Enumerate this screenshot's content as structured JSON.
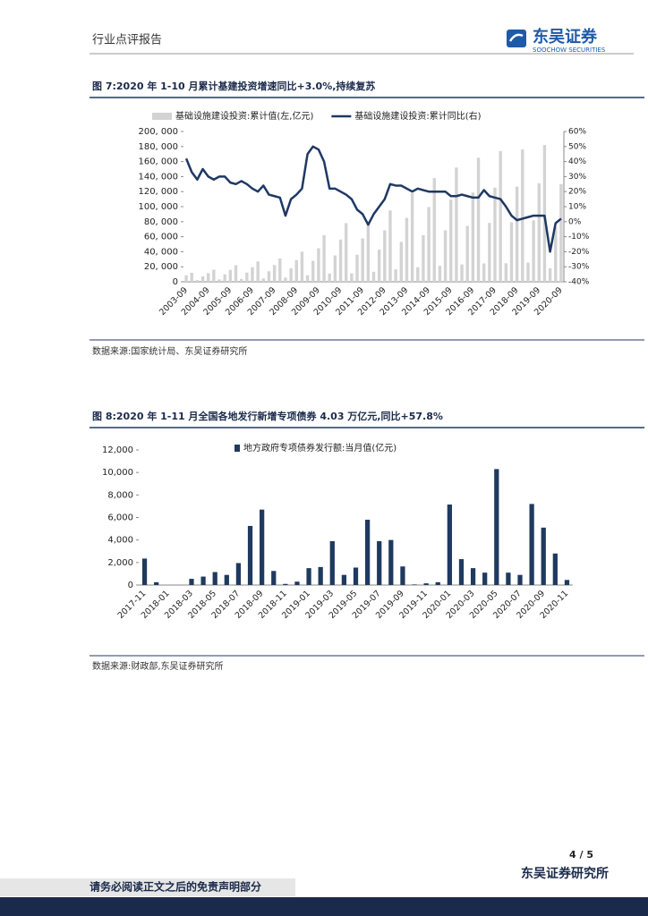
{
  "header": {
    "report_type": "行业点评报告",
    "logo_cn": "东吴证券",
    "logo_en": "SOOCHOW SECURITIES"
  },
  "chart_data": [
    {
      "type": "combo",
      "title": "图 7:2020 年 1-10 月累计基建投资增速同比+3.0%,持续复苏",
      "source": "数据来源:国家统计局、东吴证券研究所",
      "categories": [
        "2003-09",
        null,
        null,
        null,
        "2004-09",
        null,
        null,
        null,
        "2005-09",
        null,
        null,
        null,
        "2006-09",
        null,
        null,
        null,
        "2007-09",
        null,
        null,
        null,
        "2008-09",
        null,
        null,
        null,
        "2009-09",
        null,
        null,
        null,
        "2010-09",
        null,
        null,
        null,
        "2011-09",
        null,
        null,
        null,
        "2012-09",
        null,
        null,
        null,
        "2013-09",
        null,
        null,
        null,
        "2014-09",
        null,
        null,
        null,
        "2015-09",
        null,
        null,
        null,
        "2016-09",
        null,
        null,
        null,
        "2017-09",
        null,
        null,
        null,
        "2018-09",
        null,
        null,
        null,
        "2019-09",
        null,
        null,
        null,
        "2020-09"
      ],
      "series": [
        {
          "name": "基础设施建设投资:累计值(左,亿元)",
          "type": "bar",
          "color": "#d3d3d3",
          "values": [
            8600,
            12000,
            2200,
            7200,
            11500,
            16000,
            3100,
            9900,
            15800,
            22000,
            3800,
            12200,
            19400,
            27000,
            4300,
            14000,
            22300,
            31000,
            5600,
            18000,
            28800,
            40000,
            8700,
            27900,
            44600,
            62000,
            10900,
            35100,
            56200,
            78000,
            11200,
            36000,
            57600,
            80000,
            13300,
            42800,
            68400,
            95000,
            16500,
            53100,
            85000,
            118000,
            19300,
            62100,
            99400,
            138000,
            21300,
            68400,
            109400,
            152000,
            23100,
            74300,
            118800,
            165000,
            24400,
            78300,
            125300,
            174000,
            24600,
            79200,
            126700,
            176000,
            25500,
            81900,
            131000,
            182000,
            18000,
            73000,
            130000
          ]
        },
        {
          "name": "基础设施建设投资:累计同比(右)",
          "type": "line",
          "axis": "y2",
          "color": "#1f3864",
          "values": [
            42,
            33,
            28,
            35,
            30,
            28,
            30,
            30,
            26,
            25,
            27,
            25,
            22,
            20,
            24,
            18,
            17,
            16,
            4,
            15,
            18,
            22,
            45,
            50,
            48,
            40,
            22,
            22,
            20,
            18,
            15,
            8,
            5,
            -2,
            5,
            10,
            15,
            25,
            24,
            24,
            22,
            20,
            22,
            21,
            20,
            20,
            20,
            20,
            17,
            17,
            18,
            17,
            16,
            16,
            21,
            17,
            16,
            15,
            10,
            4,
            1,
            2,
            3,
            4,
            4,
            4,
            -20,
            -1,
            2
          ]
        }
      ],
      "ylim": [
        0,
        200000
      ],
      "yticks": [
        0,
        {
          "value": 20000,
          "label": "20, 000"
        },
        {
          "value": 40000,
          "label": "40, 000"
        },
        {
          "value": 60000,
          "label": "60, 000"
        },
        {
          "value": 80000,
          "label": "80, 000"
        },
        {
          "value": 100000,
          "label": "100, 000"
        },
        {
          "value": 120000,
          "label": "120, 000"
        },
        {
          "value": 140000,
          "label": "140, 000"
        },
        {
          "value": 160000,
          "label": "160, 000"
        },
        {
          "value": 180000,
          "label": "180, 000"
        },
        {
          "value": 200000,
          "label": "200, 000"
        }
      ],
      "y2lim": [
        -40,
        60
      ],
      "y2ticks": [
        {
          "value": -40,
          "label": "-40%"
        },
        {
          "value": -30,
          "label": "-30%"
        },
        {
          "value": -20,
          "label": "-20%"
        },
        {
          "value": -10,
          "label": "-10%"
        },
        {
          "value": 0,
          "label": "0%"
        },
        {
          "value": 10,
          "label": "10%"
        },
        {
          "value": 20,
          "label": "20%"
        },
        {
          "value": 30,
          "label": "30%"
        },
        {
          "value": 40,
          "label": "40%"
        },
        {
          "value": 50,
          "label": "50%"
        },
        {
          "value": 60,
          "label": "60%"
        }
      ],
      "grid": false,
      "legend": "top"
    },
    {
      "type": "bar",
      "title": "图 8:2020 年 1-11 月全国各地发行新增专项债券 4.03 万亿元,同比+57.8%",
      "source": "数据来源:财政部,东吴证券研究所",
      "categories": [
        "2017-11",
        null,
        "2018-01",
        null,
        "2018-03",
        null,
        "2018-05",
        null,
        "2018-07",
        null,
        "2018-09",
        null,
        "2018-11",
        null,
        "2019-01",
        null,
        "2019-03",
        null,
        "2019-05",
        null,
        "2019-07",
        null,
        "2019-09",
        null,
        "2019-11",
        null,
        "2020-01",
        null,
        "2020-03",
        null,
        "2020-05",
        null,
        "2020-07",
        null,
        "2020-09",
        null,
        "2020-11"
      ],
      "series": [
        {
          "name": "地方政府专项债券发行额:当月值(亿元)",
          "type": "bar",
          "color": "#1f3a5f",
          "values": [
            2350,
            250,
            0,
            0,
            550,
            750,
            1150,
            900,
            1950,
            5250,
            6700,
            1250,
            100,
            300,
            1500,
            1600,
            3900,
            900,
            1550,
            5800,
            3900,
            4000,
            1650,
            50,
            150,
            250,
            7150,
            2300,
            1500,
            1100,
            10300,
            1100,
            900,
            7200,
            5100,
            2800,
            450
          ]
        }
      ],
      "ylim": [
        0,
        12000
      ],
      "yticks": [
        0,
        {
          "value": 2000,
          "label": "2,000"
        },
        {
          "value": 4000,
          "label": "4,000"
        },
        {
          "value": 6000,
          "label": "6,000"
        },
        {
          "value": 8000,
          "label": "8,000"
        },
        {
          "value": 10000,
          "label": "10,000"
        },
        {
          "value": 12000,
          "label": "12,000"
        }
      ],
      "grid": false,
      "legend": "top"
    }
  ],
  "footer": {
    "page": "4 / 5",
    "institute": "东吴证券研究所",
    "disclaimer": "请务必阅读正文之后的免责声明部分"
  }
}
